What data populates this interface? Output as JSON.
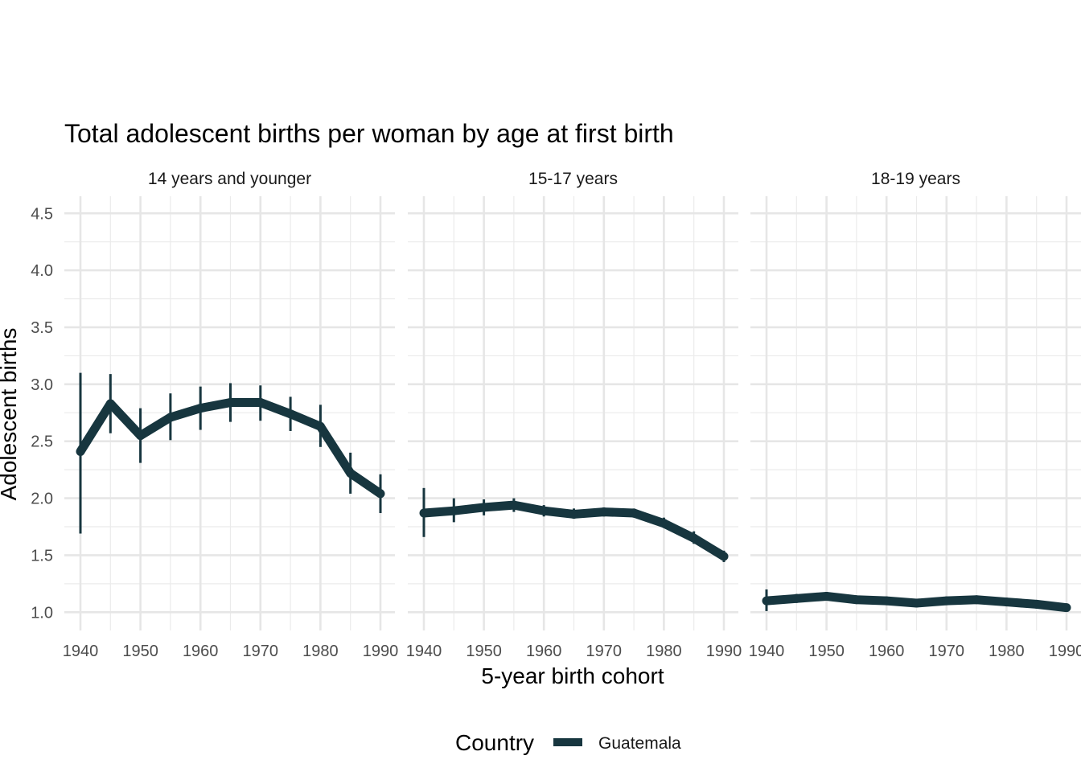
{
  "chart_data": {
    "type": "line",
    "title": "Total adolescent births per woman by age at first birth",
    "xlabel": "5-year birth cohort",
    "ylabel": "Adolescent births",
    "xlim": [
      1940,
      1990
    ],
    "ylim": [
      0.84,
      4.65
    ],
    "x_ticks": [
      1940,
      1950,
      1960,
      1970,
      1980,
      1990
    ],
    "y_ticks": [
      1.0,
      1.5,
      2.0,
      2.5,
      3.0,
      3.5,
      4.0,
      4.5
    ],
    "y_tick_labels": [
      "1.0",
      "1.5",
      "2.0",
      "2.5",
      "3.0",
      "3.5",
      "4.0",
      "4.5"
    ],
    "color": "#17363f",
    "grid": true,
    "legend": {
      "title": "Country",
      "position": "bottom",
      "entries": [
        "Guatemala"
      ]
    },
    "x": [
      1940,
      1945,
      1950,
      1955,
      1960,
      1965,
      1970,
      1975,
      1980,
      1985,
      1990
    ],
    "panels": [
      {
        "label": "14 years and younger",
        "series": [
          {
            "name": "Guatemala",
            "values": [
              2.41,
              2.83,
              2.55,
              2.71,
              2.79,
              2.84,
              2.84,
              2.74,
              2.63,
              2.22,
              2.04
            ],
            "lower": [
              1.69,
              2.57,
              2.31,
              2.51,
              2.6,
              2.67,
              2.68,
              2.59,
              2.45,
              2.04,
              1.87
            ],
            "upper": [
              3.1,
              3.09,
              2.79,
              2.92,
              2.98,
              3.01,
              2.99,
              2.89,
              2.82,
              2.4,
              2.21
            ]
          }
        ]
      },
      {
        "label": "15-17 years",
        "series": [
          {
            "name": "Guatemala",
            "values": [
              1.87,
              1.89,
              1.92,
              1.94,
              1.89,
              1.86,
              1.88,
              1.87,
              1.78,
              1.65,
              1.49
            ],
            "lower": [
              1.66,
              1.79,
              1.85,
              1.88,
              1.84,
              1.82,
              1.84,
              1.83,
              1.74,
              1.6,
              1.44
            ],
            "upper": [
              2.09,
              2.0,
              1.99,
              2.0,
              1.94,
              1.91,
              1.92,
              1.91,
              1.83,
              1.71,
              1.54
            ]
          }
        ]
      },
      {
        "label": "18-19 years",
        "series": [
          {
            "name": "Guatemala",
            "values": [
              1.1,
              1.12,
              1.14,
              1.11,
              1.1,
              1.08,
              1.1,
              1.11,
              1.09,
              1.07,
              1.04
            ],
            "lower": [
              1.01,
              1.09,
              1.12,
              1.09,
              1.08,
              1.06,
              1.08,
              1.09,
              1.07,
              1.05,
              1.02
            ],
            "upper": [
              1.2,
              1.16,
              1.16,
              1.13,
              1.12,
              1.1,
              1.12,
              1.13,
              1.11,
              1.09,
              1.06
            ]
          }
        ]
      }
    ]
  }
}
